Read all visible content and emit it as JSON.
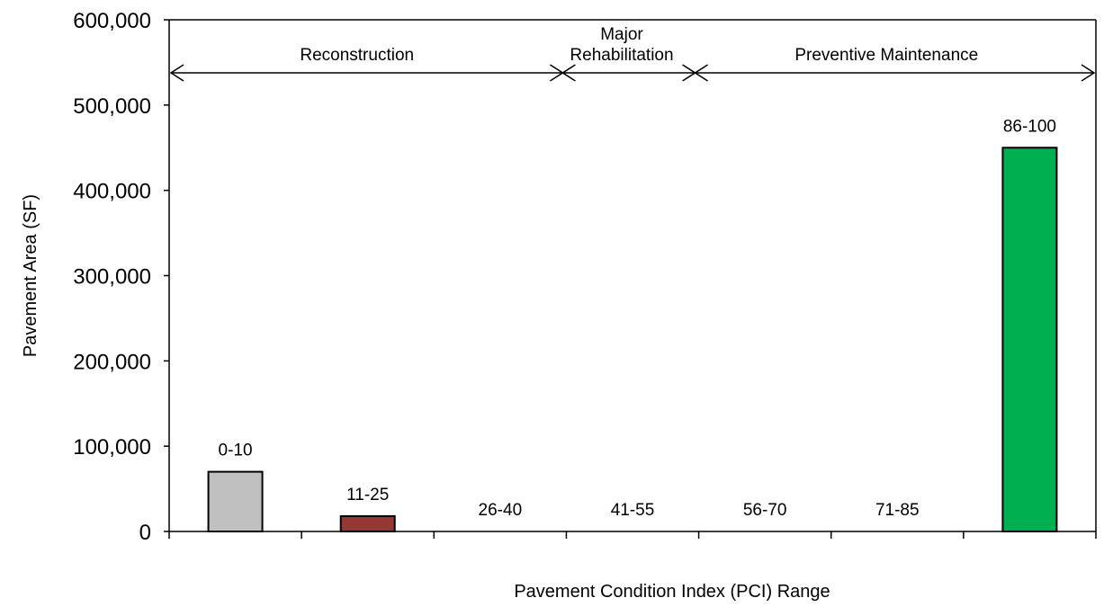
{
  "chart_data": {
    "type": "bar",
    "categories": [
      "0-10",
      "11-25",
      "26-40",
      "41-55",
      "56-70",
      "71-85",
      "86-100"
    ],
    "values": [
      70000,
      18000,
      0,
      0,
      0,
      0,
      450000
    ],
    "colors": [
      "#c0c0c0",
      "#953735",
      "#c0c0c0",
      "#c0c0c0",
      "#c0c0c0",
      "#c0c0c0",
      "#00b050"
    ],
    "ylabel": "Pavement  Area (SF)",
    "xlabel": "Pavement Condition Index (PCI) Range",
    "ylim": [
      0,
      600000
    ],
    "yticks": [
      "0",
      "100,000",
      "200,000",
      "300,000",
      "400,000",
      "500,000",
      "600,000"
    ],
    "yticks_values": [
      0,
      100000,
      200000,
      300000,
      400000,
      500000,
      600000
    ],
    "grid": false,
    "ranges": [
      {
        "lines": [
          "Reconstruction"
        ],
        "from": 0,
        "to": 3
      },
      {
        "lines": [
          "Major",
          "Rehabilitation"
        ],
        "from": 3,
        "to": 4
      },
      {
        "lines": [
          "Preventive Maintenance"
        ],
        "from": 4,
        "to": 7
      }
    ]
  }
}
